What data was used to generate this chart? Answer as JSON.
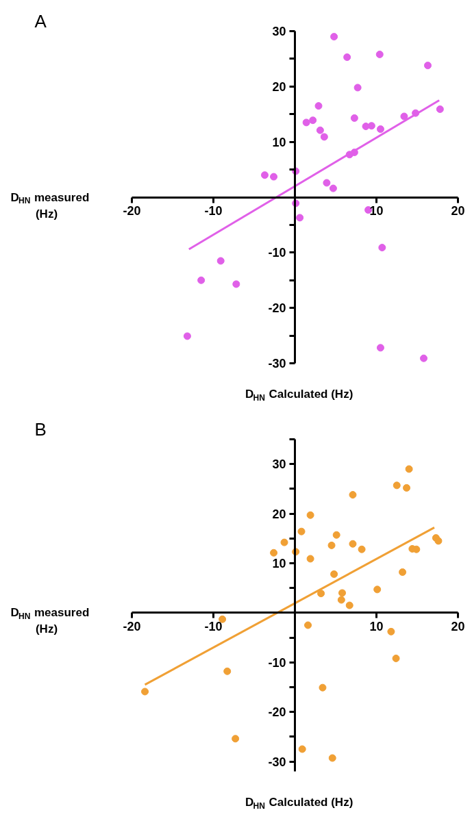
{
  "chart_data": [
    {
      "type": "scatter",
      "title": "A",
      "xlabel": "D$_{HN}$ Calculated (Hz)",
      "ylabel": "D$_{HN}$ measured (Hz)",
      "xlim": [
        -20,
        20
      ],
      "ylim": [
        -30,
        30
      ],
      "xticks": [
        -20,
        -10,
        10,
        20
      ],
      "yticks": [
        -30,
        {
          "value": -25,
          "label": null
        },
        -20,
        {
          "value": -15,
          "label": null
        },
        -10,
        {
          "value": -5,
          "label": null
        },
        {
          "value": 5,
          "label": null
        },
        10,
        {
          "value": 15,
          "label": null
        },
        20,
        {
          "value": 25,
          "label": null
        },
        30
      ],
      "series": [
        {
          "type": "scatter",
          "marker": "circle",
          "color": "#e060e8",
          "x": [
            4.8,
            6.4,
            10.4,
            16.3,
            7.7,
            2.9,
            17.8,
            14.8,
            13.4,
            7.3,
            2.2,
            1.4,
            8.7,
            9.4,
            10.5,
            3.1,
            3.6,
            6.7,
            7.3,
            0.1,
            -3.7,
            -2.6,
            3.9,
            4.7,
            0.1,
            0.6,
            9.0,
            10.7,
            -9.1,
            -11.5,
            -7.2,
            -13.2,
            10.5,
            15.8
          ],
          "values": [
            29.0,
            25.3,
            25.8,
            23.8,
            19.8,
            16.5,
            15.9,
            15.2,
            14.6,
            14.3,
            13.9,
            13.5,
            12.8,
            12.9,
            12.3,
            12.1,
            10.9,
            7.7,
            8.1,
            4.7,
            4.0,
            3.7,
            2.6,
            1.6,
            -1.1,
            -3.7,
            -2.3,
            -9.1,
            -11.5,
            -15.0,
            -15.7,
            -25.1,
            -27.2,
            -29.1
          ]
        },
        {
          "type": "line",
          "color": "#e060e8",
          "x": [
            -13.0,
            17.7
          ],
          "values": [
            -9.4,
            17.5
          ]
        }
      ]
    },
    {
      "type": "scatter",
      "title": "B",
      "xlabel": "D$_{HN}$ Calculated (Hz)",
      "ylabel": "D$_{HN}$ measured (Hz)",
      "xlim": [
        -20,
        20
      ],
      "ylim": [
        -32,
        35
      ],
      "xticks": [
        -20,
        -10,
        10,
        20
      ],
      "yticks": [
        -30,
        {
          "value": -25,
          "label": null
        },
        -20,
        {
          "value": -15,
          "label": null
        },
        -10,
        {
          "value": -5,
          "label": null
        },
        {
          "value": 5,
          "label": null
        },
        10,
        {
          "value": 15,
          "label": null
        },
        20,
        {
          "value": 25,
          "label": null
        },
        30,
        {
          "value": 35,
          "label": null
        }
      ],
      "series": [
        {
          "type": "scatter",
          "marker": "circle",
          "color": "#f0a035",
          "x": [
            14.0,
            12.5,
            13.7,
            7.1,
            1.9,
            0.8,
            5.1,
            17.3,
            17.6,
            -1.3,
            7.1,
            4.5,
            8.2,
            14.4,
            14.9,
            -2.6,
            0.1,
            1.9,
            4.8,
            13.2,
            10.1,
            3.2,
            5.8,
            5.7,
            6.7,
            -8.9,
            1.6,
            11.8,
            12.4,
            -8.3,
            -18.4,
            3.4,
            -7.3,
            0.9,
            4.6
          ],
          "values": [
            29.0,
            25.7,
            25.2,
            23.8,
            19.7,
            16.4,
            15.7,
            15.1,
            14.5,
            14.2,
            13.9,
            13.6,
            12.8,
            12.9,
            12.8,
            12.1,
            12.3,
            10.9,
            7.8,
            8.2,
            4.7,
            3.9,
            4.0,
            2.6,
            1.5,
            -1.3,
            -2.5,
            -3.8,
            -9.2,
            -11.8,
            -15.9,
            -15.1,
            -25.4,
            -27.5,
            -29.3
          ]
        },
        {
          "type": "line",
          "color": "#f0a035",
          "x": [
            -18.4,
            17.1
          ],
          "values": [
            -14.5,
            17.2
          ]
        }
      ]
    }
  ]
}
